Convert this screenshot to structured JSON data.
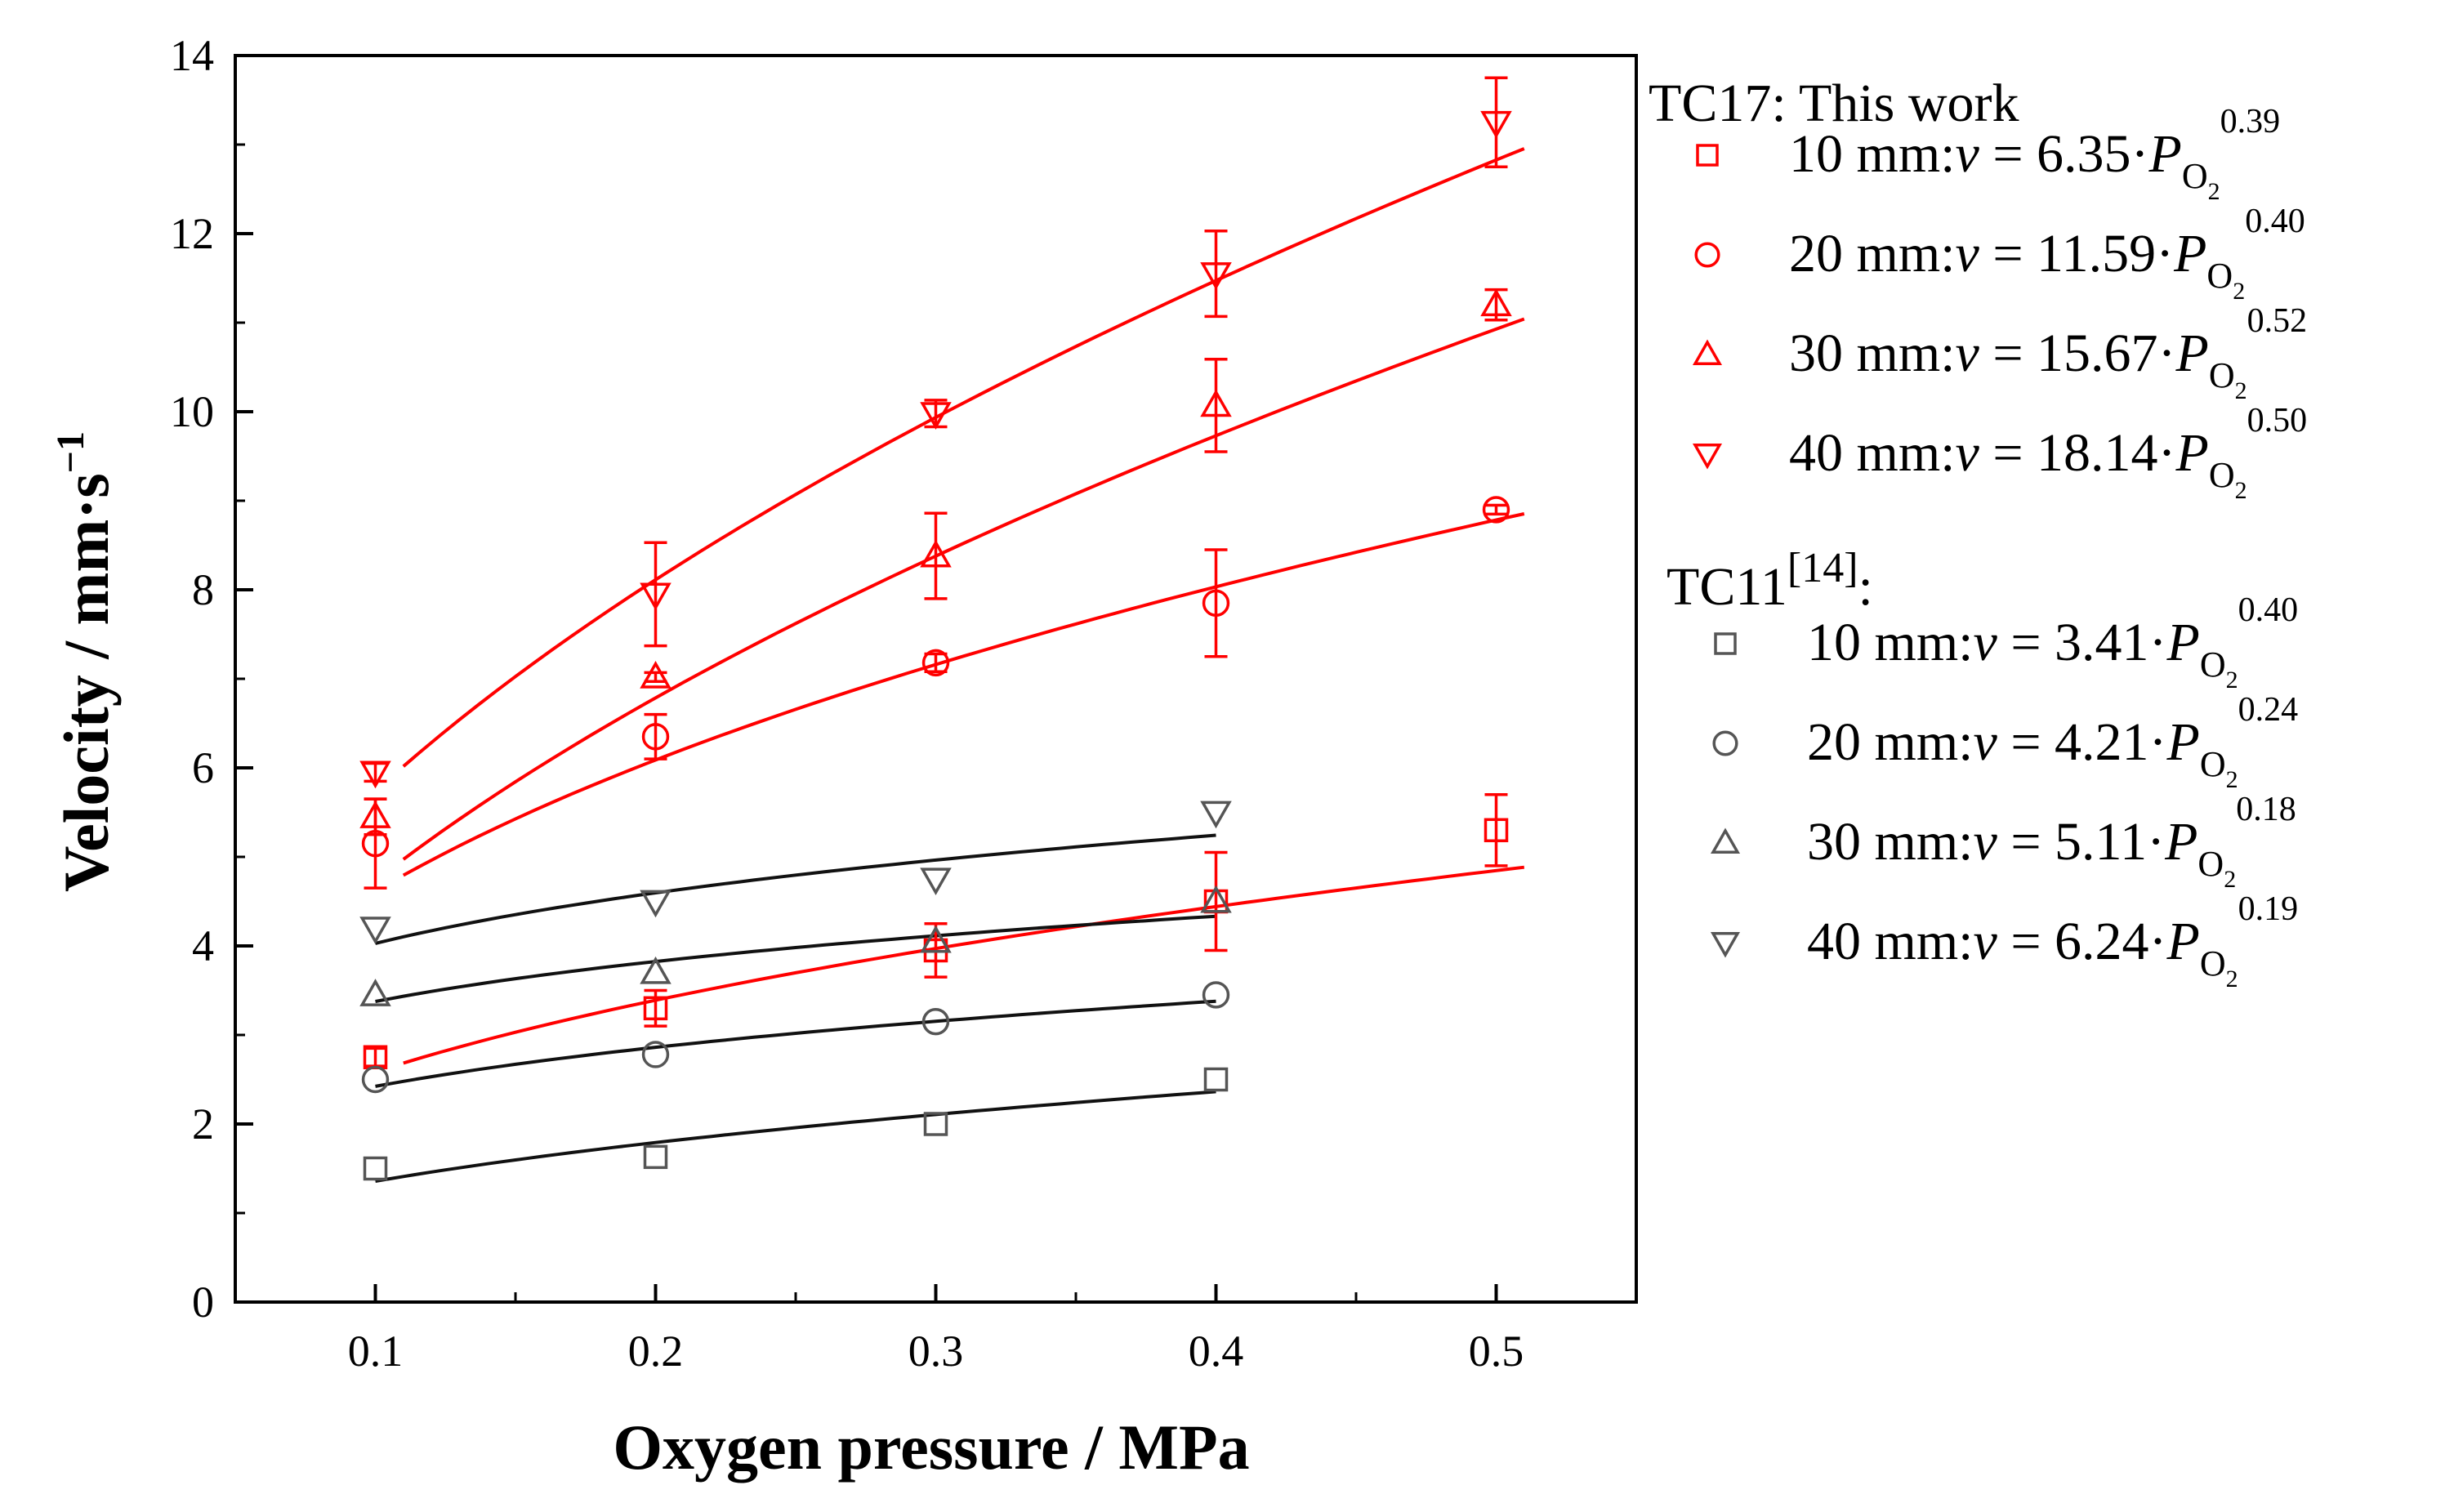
{
  "chart_data": {
    "type": "scatter",
    "xlabel": "Oxygen pressure / MPa",
    "ylabel": {
      "main": "Velocity  / mm·s",
      "sup": "−1"
    },
    "xlim": [
      0.05,
      0.55
    ],
    "ylim": [
      0,
      14
    ],
    "xticks": [
      "0.1",
      "0.2",
      "0.3",
      "0.4",
      "0.5"
    ],
    "yticks": [
      "0",
      "2",
      "4",
      "6",
      "8",
      "10",
      "12",
      "14"
    ],
    "colors": {
      "tc17": "#ff0000",
      "tc11": "#555555",
      "tc11_fit": "#111111"
    },
    "legend_groups": [
      {
        "title": "TC17: This work",
        "title_sup": ""
      },
      {
        "title": "TC11",
        "title_sup": "[14]",
        "title_suffix": ":"
      }
    ],
    "series": [
      {
        "group": 0,
        "marker": "square",
        "label": "10 mm",
        "coef": 6.35,
        "exp": 0.39,
        "coef_text": "6.35",
        "exp_text": "0.39",
        "fit_range": [
          0.11,
          0.51
        ],
        "x": [
          0.1,
          0.2,
          0.3,
          0.4,
          0.5
        ],
        "y": [
          2.75,
          3.3,
          3.95,
          4.5,
          5.3
        ],
        "err": [
          0.1,
          0.2,
          0.3,
          0.55,
          0.4
        ]
      },
      {
        "group": 0,
        "marker": "circle",
        "label": "20 mm",
        "coef": 11.59,
        "exp": 0.4,
        "coef_text": "11.59",
        "exp_text": "0.40",
        "fit_range": [
          0.11,
          0.51
        ],
        "x": [
          0.1,
          0.2,
          0.3,
          0.4,
          0.5
        ],
        "y": [
          5.15,
          6.35,
          7.18,
          7.85,
          8.9
        ],
        "err": [
          0.5,
          0.25,
          0.1,
          0.6,
          0.05
        ]
      },
      {
        "group": 0,
        "marker": "triangle-up",
        "label": "30 mm",
        "coef": 15.67,
        "exp": 0.52,
        "coef_text": "15.67",
        "exp_text": "0.52",
        "fit_range": [
          0.11,
          0.51
        ],
        "x": [
          0.1,
          0.2,
          0.3,
          0.4,
          0.5
        ],
        "y": [
          5.45,
          7.02,
          8.38,
          10.07,
          11.2
        ],
        "err": [
          0.2,
          0.05,
          0.48,
          0.52,
          0.17
        ]
      },
      {
        "group": 0,
        "marker": "triangle-down",
        "label": "40 mm",
        "coef": 18.14,
        "exp": 0.5,
        "coef_text": "18.14",
        "exp_text": "0.50",
        "fit_range": [
          0.11,
          0.51
        ],
        "x": [
          0.1,
          0.2,
          0.3,
          0.4,
          0.5
        ],
        "y": [
          5.95,
          7.95,
          9.98,
          11.55,
          13.25
        ],
        "err": [
          0.1,
          0.58,
          0.15,
          0.48,
          0.5
        ]
      },
      {
        "group": 1,
        "marker": "square",
        "label": "10 mm",
        "coef": 3.41,
        "exp": 0.4,
        "coef_text": "3.41",
        "exp_text": "0.40",
        "fit_range": [
          0.1,
          0.4
        ],
        "x": [
          0.1,
          0.2,
          0.3,
          0.4
        ],
        "y": [
          1.5,
          1.63,
          2.0,
          2.5
        ],
        "err": [
          0,
          0,
          0,
          0
        ]
      },
      {
        "group": 1,
        "marker": "circle",
        "label": "20 mm",
        "coef": 4.21,
        "exp": 0.24,
        "coef_text": "4.21",
        "exp_text": "0.24",
        "fit_range": [
          0.1,
          0.4
        ],
        "x": [
          0.1,
          0.2,
          0.3,
          0.4
        ],
        "y": [
          2.5,
          2.78,
          3.15,
          3.45
        ],
        "err": [
          0,
          0,
          0,
          0
        ]
      },
      {
        "group": 1,
        "marker": "triangle-up",
        "label": "30 mm",
        "coef": 5.11,
        "exp": 0.18,
        "coef_text": "5.11",
        "exp_text": "0.18",
        "fit_range": [
          0.1,
          0.4
        ],
        "x": [
          0.1,
          0.2,
          0.3,
          0.4
        ],
        "y": [
          3.45,
          3.7,
          4.05,
          4.5
        ],
        "err": [
          0,
          0,
          0,
          0
        ]
      },
      {
        "group": 1,
        "marker": "triangle-down",
        "label": "40 mm",
        "coef": 6.24,
        "exp": 0.19,
        "coef_text": "6.24",
        "exp_text": "0.19",
        "fit_range": [
          0.1,
          0.4
        ],
        "x": [
          0.1,
          0.2,
          0.3,
          0.4
        ],
        "y": [
          4.2,
          4.5,
          4.75,
          5.5
        ],
        "err": [
          0,
          0,
          0,
          0
        ]
      }
    ],
    "legend_tokens": {
      "colon": ":",
      "v": "v",
      "equals": " = ",
      "dot": "·",
      "P": "P",
      "O": "O",
      "two": "2"
    }
  }
}
